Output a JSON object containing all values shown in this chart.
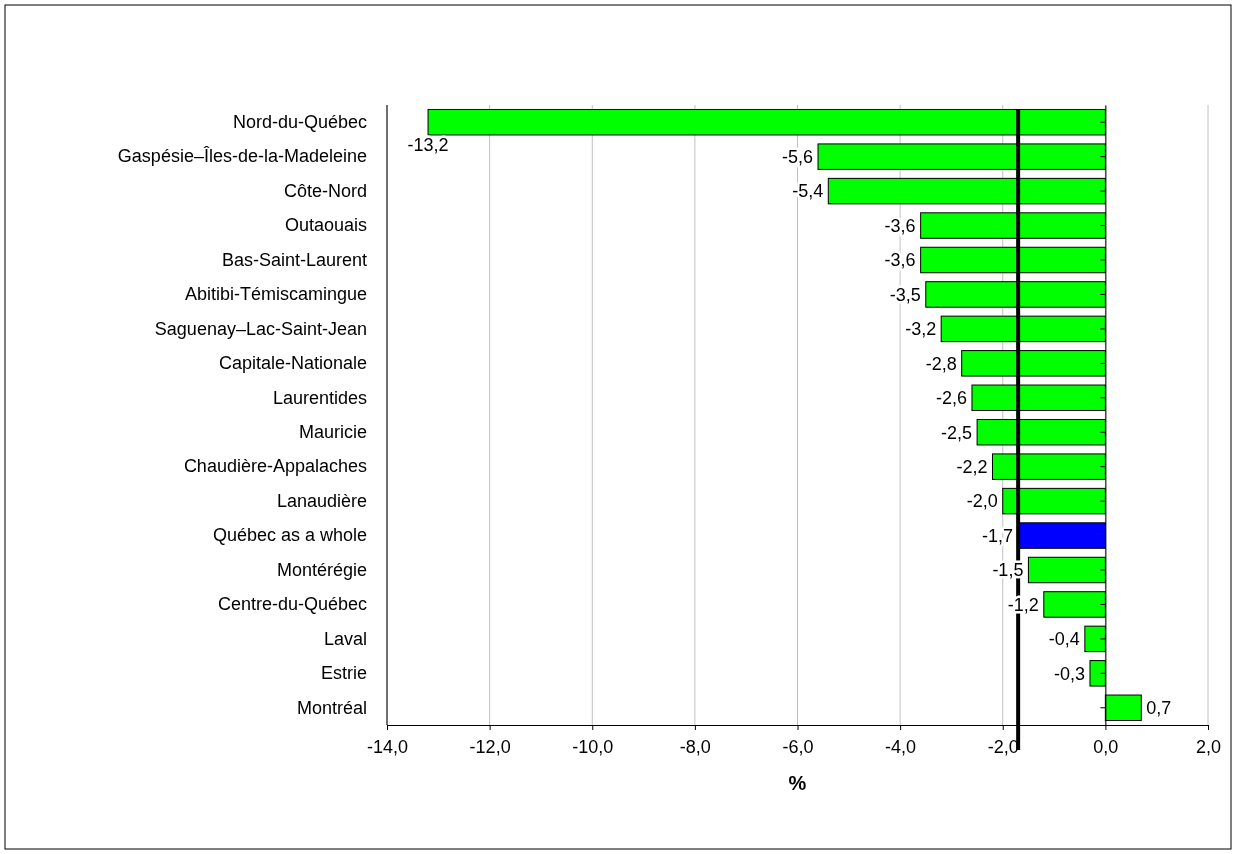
{
  "chart_data": {
    "type": "bar",
    "orientation": "horizontal",
    "xlabel": "%",
    "categories": [
      "Nord-du-Québec",
      "Gaspésie–Îles-de-la-Madeleine",
      "Côte-Nord",
      "Outaouais",
      "Bas-Saint-Laurent",
      "Abitibi-Témiscamingue",
      "Saguenay–Lac-Saint-Jean",
      "Capitale-Nationale",
      "Laurentides",
      "Mauricie",
      "Chaudière-Appalaches",
      "Lanaudière",
      "Québec as a whole",
      "Montérégie",
      "Centre-du-Québec",
      "Laval",
      "Estrie",
      "Montréal"
    ],
    "values": [
      -13.2,
      -5.6,
      -5.4,
      -3.6,
      -3.6,
      -3.5,
      -3.2,
      -2.8,
      -2.6,
      -2.5,
      -2.2,
      -2.0,
      -1.7,
      -1.5,
      -1.2,
      -0.4,
      -0.3,
      0.7
    ],
    "value_labels": [
      "-13,2",
      "-5,6",
      "-5,4",
      "-3,6",
      "-3,6",
      "-3,5",
      "-3,2",
      "-2,8",
      "-2,6",
      "-2,5",
      "-2,2",
      "-2,0",
      "-1,7",
      "-1,5",
      "-1,2",
      "-0,4",
      "-0,3",
      "0,7"
    ],
    "colors": [
      "#00ff00",
      "#00ff00",
      "#00ff00",
      "#00ff00",
      "#00ff00",
      "#00ff00",
      "#00ff00",
      "#00ff00",
      "#00ff00",
      "#00ff00",
      "#00ff00",
      "#00ff00",
      "#0000ff",
      "#00ff00",
      "#00ff00",
      "#00ff00",
      "#00ff00",
      "#00ff00"
    ],
    "xlim": [
      -14,
      2
    ],
    "xticks": [
      {
        "value": -14,
        "label": "-14,0"
      },
      {
        "value": -12,
        "label": "-12,0"
      },
      {
        "value": -10,
        "label": "-10,0"
      },
      {
        "value": -8,
        "label": "-8,0"
      },
      {
        "value": -6,
        "label": "-6,0"
      },
      {
        "value": -4,
        "label": "-4,0"
      },
      {
        "value": -2,
        "label": "-2,0"
      },
      {
        "value": 0,
        "label": "0,0"
      },
      {
        "value": 2,
        "label": "2,0"
      }
    ],
    "grid": "x",
    "ref_lines": [
      {
        "axis": "x",
        "value": -1.7,
        "color": "#000000"
      }
    ]
  }
}
